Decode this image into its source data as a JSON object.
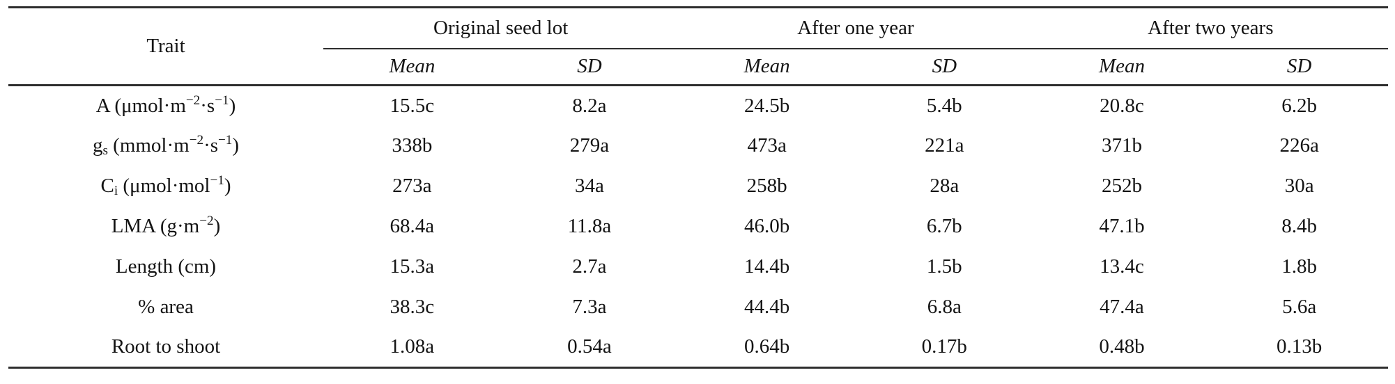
{
  "table": {
    "header": {
      "trait_label": "Trait",
      "groups": [
        {
          "label": "Original seed lot"
        },
        {
          "label": "After one year"
        },
        {
          "label": "After two years"
        }
      ],
      "stat_labels": [
        "Mean",
        "SD",
        "Mean",
        "SD",
        "Mean",
        "SD"
      ]
    },
    "rows": [
      {
        "trait": [
          {
            "t": "A (μmol·m"
          },
          {
            "sup": "−2"
          },
          {
            "t": "·s"
          },
          {
            "sup": "−1"
          },
          {
            "t": ")"
          }
        ],
        "values": [
          "15.5c",
          "8.2a",
          "24.5b",
          "5.4b",
          "20.8c",
          "6.2b"
        ]
      },
      {
        "trait": [
          {
            "t": "g"
          },
          {
            "sub": "s"
          },
          {
            "t": " (mmol·m"
          },
          {
            "sup": "−2"
          },
          {
            "t": "·s"
          },
          {
            "sup": "−1"
          },
          {
            "t": ")"
          }
        ],
        "values": [
          "338b",
          "279a",
          "473a",
          "221a",
          "371b",
          "226a"
        ]
      },
      {
        "trait": [
          {
            "t": "C"
          },
          {
            "sub": "i"
          },
          {
            "t": " (μmol·mol"
          },
          {
            "sup": "−1"
          },
          {
            "t": ")"
          }
        ],
        "values": [
          "273a",
          "34a",
          "258b",
          "28a",
          "252b",
          "30a"
        ]
      },
      {
        "trait": [
          {
            "t": "LMA (g·m"
          },
          {
            "sup": "−2"
          },
          {
            "t": ")"
          }
        ],
        "values": [
          "68.4a",
          "11.8a",
          "46.0b",
          "6.7b",
          "47.1b",
          "8.4b"
        ]
      },
      {
        "trait": [
          {
            "t": "Length (cm)"
          }
        ],
        "values": [
          "15.3a",
          "2.7a",
          "14.4b",
          "1.5b",
          "13.4c",
          "1.8b"
        ]
      },
      {
        "trait": [
          {
            "t": "% area"
          }
        ],
        "values": [
          "38.3c",
          "7.3a",
          "44.4b",
          "6.8a",
          "47.4a",
          "5.6a"
        ]
      },
      {
        "trait": [
          {
            "t": "Root to shoot"
          }
        ],
        "values": [
          "1.08a",
          "0.54a",
          "0.64b",
          "0.17b",
          "0.48b",
          "0.13b"
        ]
      }
    ]
  },
  "colors": {
    "text": "#141414",
    "rule": "#2e2e2e",
    "background": "#ffffff"
  }
}
